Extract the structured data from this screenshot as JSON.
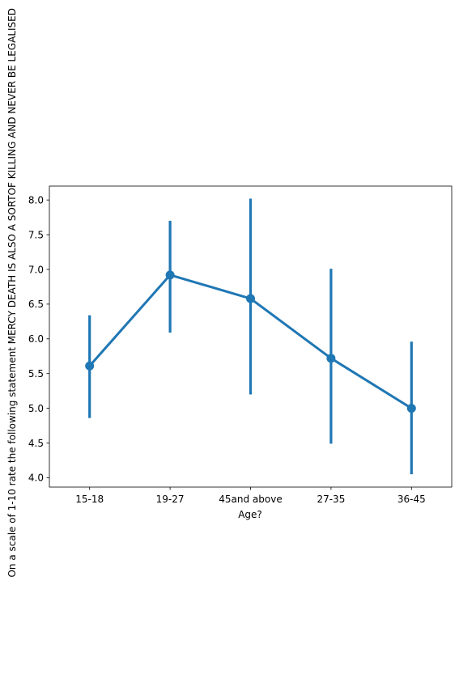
{
  "chart_data": {
    "type": "line",
    "title": "",
    "xlabel": "Age?",
    "ylabel": "On a scale of 1-10 rate the following statement MERCY DEATH IS ALSO A SORTOF KILLING AND NEVER BE LEGALISED",
    "categories": [
      "15-18",
      "19-27",
      "45and above",
      "27-35",
      "36-45"
    ],
    "values": [
      5.61,
      6.92,
      6.58,
      5.72,
      5.0
    ],
    "error_low": [
      4.86,
      6.09,
      5.2,
      4.49,
      4.05
    ],
    "error_high": [
      6.34,
      7.7,
      8.02,
      7.01,
      5.96
    ],
    "ylim": [
      3.865,
      8.2
    ],
    "yticks": [
      4.0,
      4.5,
      5.0,
      5.5,
      6.0,
      6.5,
      7.0,
      7.5,
      8.0
    ],
    "ytick_labels": [
      "4.0",
      "4.5",
      "5.0",
      "5.5",
      "6.0",
      "6.5",
      "7.0",
      "7.5",
      "8.0"
    ],
    "grid": false,
    "color": "#1f77b4"
  }
}
